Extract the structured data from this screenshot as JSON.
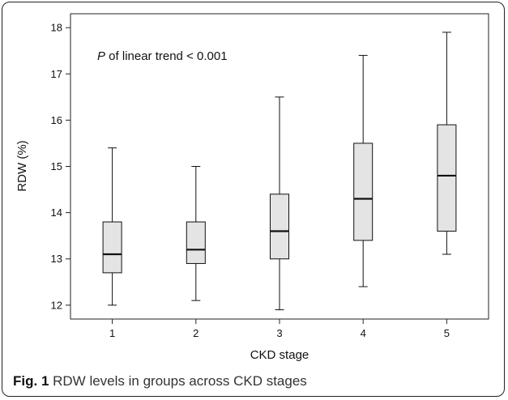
{
  "chart_data": {
    "type": "boxplot",
    "xlabel": "CKD stage",
    "ylabel": "RDW (%)",
    "categories": [
      "1",
      "2",
      "3",
      "4",
      "5"
    ],
    "ylim": [
      11.7,
      18.3
    ],
    "yticks": [
      12,
      13,
      14,
      15,
      16,
      17,
      18
    ],
    "boxes": [
      {
        "category": "1",
        "min": 12.0,
        "q1": 12.7,
        "median": 13.1,
        "q3": 13.8,
        "max": 15.4
      },
      {
        "category": "2",
        "min": 12.1,
        "q1": 12.9,
        "median": 13.2,
        "q3": 13.8,
        "max": 15.0
      },
      {
        "category": "3",
        "min": 11.9,
        "q1": 13.0,
        "median": 13.6,
        "q3": 14.4,
        "max": 16.5
      },
      {
        "category": "4",
        "min": 12.4,
        "q1": 13.4,
        "median": 14.3,
        "q3": 15.5,
        "max": 17.4
      },
      {
        "category": "5",
        "min": 13.1,
        "q1": 13.6,
        "median": 14.8,
        "q3": 15.9,
        "max": 17.9
      }
    ],
    "annotation": {
      "italic": "P",
      "text": " of linear trend < 0.001"
    },
    "box_fill": "#e4e4e4",
    "line_color": "#111111",
    "grid": false
  },
  "caption": {
    "label": "Fig. 1",
    "text": " RDW levels in groups across CKD stages"
  }
}
